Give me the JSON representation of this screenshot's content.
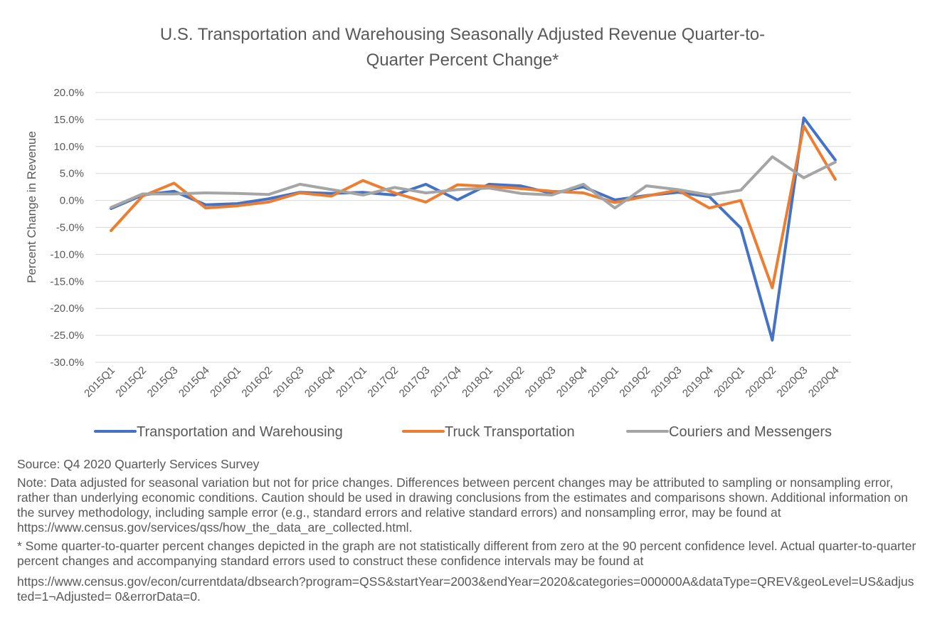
{
  "chart_data": {
    "type": "line",
    "title_lines": [
      "U.S. Transportation and Warehousing Seasonally Adjusted Revenue Quarter-to-",
      "Quarter Percent Change*"
    ],
    "ylabel": "Percent Change in Revenue",
    "xlabel": "",
    "ylim": [
      -30,
      20
    ],
    "y_ticks": [
      "20.0%",
      "15.0%",
      "10.0%",
      "5.0%",
      "0.0%",
      "-5.0%",
      "-10.0%",
      "-15.0%",
      "-20.0%",
      "-25.0%",
      "-30.0%"
    ],
    "grid": "horizontal",
    "legend_position": "bottom",
    "categories": [
      "2015Q1",
      "2015Q2",
      "2015Q3",
      "2015Q4",
      "2016Q1",
      "2016Q2",
      "2016Q3",
      "2016Q4",
      "2017Q1",
      "2017Q2",
      "2017Q3",
      "2017Q4",
      "2018Q1",
      "2018Q2",
      "2018Q3",
      "2018Q4",
      "2019Q1",
      "2019Q2",
      "2019Q3",
      "2019Q4",
      "2020Q1",
      "2020Q2",
      "2020Q3",
      "2020Q4"
    ],
    "series": [
      {
        "name": "Transportation and Warehousing",
        "color": "#4472C4",
        "values": [
          -1.5,
          1.0,
          1.7,
          -0.8,
          -0.6,
          0.3,
          1.5,
          1.3,
          1.5,
          1.0,
          3.0,
          0.1,
          3.0,
          2.7,
          1.3,
          2.5,
          0.1,
          0.9,
          1.5,
          0.7,
          -5.1,
          -25.9,
          15.3,
          7.5
        ]
      },
      {
        "name": "Truck Transportation",
        "color": "#ED7D31",
        "values": [
          -5.6,
          0.8,
          3.2,
          -1.4,
          -1.0,
          -0.3,
          1.4,
          0.8,
          3.7,
          1.4,
          -0.3,
          2.9,
          2.6,
          2.2,
          1.7,
          1.4,
          -0.4,
          0.8,
          1.9,
          -1.4,
          0.0,
          -16.2,
          13.8,
          3.9
        ]
      },
      {
        "name": "Couriers and Messengers",
        "color": "#A5A5A5",
        "values": [
          -1.3,
          1.2,
          1.2,
          1.4,
          1.3,
          1.1,
          3.0,
          2.0,
          1.0,
          2.4,
          1.4,
          2.0,
          2.3,
          1.3,
          1.0,
          3.0,
          -1.4,
          2.7,
          2.0,
          1.0,
          1.9,
          8.1,
          4.2,
          7.1
        ]
      }
    ]
  },
  "notes": {
    "source": "Source: Q4 2020 Quarterly Services Survey",
    "note": "Note: Data adjusted for seasonal variation but not for price changes. Differences between percent changes may be attributed to sampling or nonsampling error, rather than underlying economic conditions. Caution should be used in drawing conclusions from the estimates and comparisons shown. Additional information on the survey methodology, including sample error (e.g., standard errors and relative standard errors) and nonsampling error, may be found at https://www.census.gov/services/qss/how_the_data_are_collected.html.",
    "asterisk": "* Some quarter-to-quarter percent changes depicted in the graph are not statistically different from zero at the 90 percent confidence level. Actual quarter-to-quarter percent changes and accompanying standard errors used to construct these confidence intervals may be found at",
    "url": "https://www.census.gov/econ/currentdata/dbsearch?program=QSS&startYear=2003&endYear=2020&categories=000000A&dataType=QREV&geoLevel=US&adjusted=1¬Adjusted= 0&errorData=0."
  }
}
